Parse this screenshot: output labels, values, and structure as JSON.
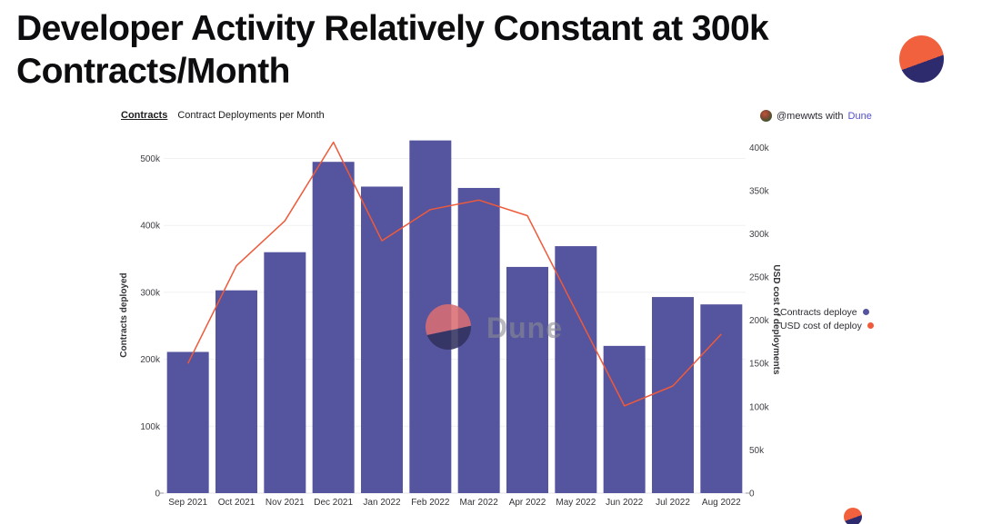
{
  "page": {
    "title_lines": [
      "Developer Activity Relatively Constant at 300k",
      "Contracts/Month"
    ],
    "title_full": "Developer Activity Relatively Constant at 300k Contracts/Month"
  },
  "logo": {
    "orange": "#F2613E",
    "navy": "#2D2A6E"
  },
  "chart_header": {
    "tab_label": "Contracts",
    "subtitle": "Contract Deployments per Month"
  },
  "attribution": {
    "handle": "@mewwts",
    "connector": "with",
    "brand": "Dune",
    "brand_color": "#514FCE"
  },
  "legend": [
    {
      "label": "Contracts deploye",
      "color": "#55549E"
    },
    {
      "label": "USD cost of deploy",
      "color": "#EE5A3A"
    }
  ],
  "watermark": {
    "text": "Dune"
  },
  "chart_data": {
    "type": "bar+line combo",
    "categories": [
      "Sep 2021",
      "Oct 2021",
      "Nov 2021",
      "Dec 2021",
      "Jan 2022",
      "Feb 2022",
      "Mar 2022",
      "Apr 2022",
      "May 2022",
      "Jun 2022",
      "Jul 2022",
      "Aug 2022"
    ],
    "series": [
      {
        "name": "Contracts deployed",
        "type": "bar",
        "axis": "left",
        "color": "#55549E",
        "values_k": [
          211,
          303,
          360,
          495,
          458,
          527,
          456,
          338,
          369,
          220,
          293,
          282
        ]
      },
      {
        "name": "USD cost of deployments",
        "type": "line",
        "axis": "right",
        "color": "#EE5A3A",
        "values_k": [
          150,
          263,
          315,
          406,
          292,
          328,
          339,
          321,
          211,
          101,
          124,
          184
        ]
      }
    ],
    "left_axis": {
      "label": "Contracts deployed",
      "ticks_k": [
        0,
        100,
        200,
        300,
        400,
        500
      ],
      "max_k": 536
    },
    "right_axis": {
      "label": "USD cost of deployments",
      "ticks_k": [
        0,
        50,
        100,
        150,
        200,
        250,
        300,
        350,
        400
      ],
      "max_k": 415
    },
    "grid": "horizontal-light",
    "legend_position": "right"
  }
}
